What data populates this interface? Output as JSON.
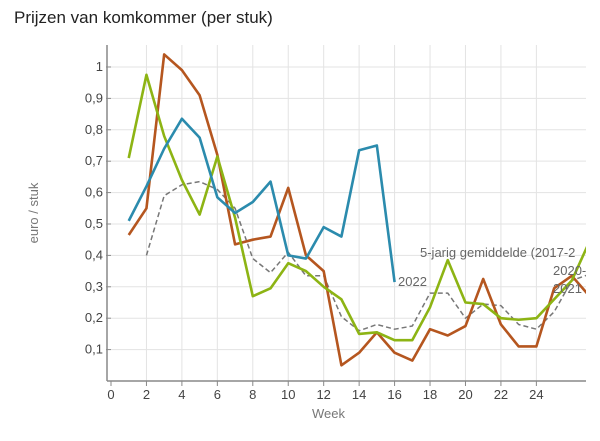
{
  "chart_data": {
    "type": "line",
    "title": "Prijzen van komkommer (per stuk)",
    "xlabel": "Week",
    "ylabel": "euro / stuk",
    "xlim": [
      0,
      26.8
    ],
    "ylim": [
      0,
      1.07
    ],
    "xticks": [
      "0",
      "2",
      "4",
      "6",
      "8",
      "10",
      "12",
      "14",
      "16",
      "18",
      "20",
      "22",
      "24"
    ],
    "yticks": [
      {
        "v": 0.1,
        "label": "0,1"
      },
      {
        "v": 0.2,
        "label": "0,2"
      },
      {
        "v": 0.3,
        "label": "0,3"
      },
      {
        "v": 0.4,
        "label": "0,4"
      },
      {
        "v": 0.5,
        "label": "0,5"
      },
      {
        "v": 0.6,
        "label": "0,6"
      },
      {
        "v": 0.7,
        "label": "0,7"
      },
      {
        "v": 0.8,
        "label": "0,8"
      },
      {
        "v": 0.9,
        "label": "0,9"
      },
      {
        "v": 1.0,
        "label": "1"
      }
    ],
    "grid": true,
    "series": [
      {
        "name": "5-jarig gemiddelde (2017-2",
        "color": "#777777",
        "dashed": true,
        "x": [
          2,
          3,
          4,
          5,
          6,
          7,
          8,
          9,
          10,
          11,
          12,
          13,
          14,
          15,
          16,
          17,
          18,
          19,
          20,
          21,
          22,
          23,
          24,
          25,
          26,
          27
        ],
        "values": [
          0.4,
          0.59,
          0.625,
          0.635,
          0.61,
          0.55,
          0.39,
          0.345,
          0.41,
          0.335,
          0.335,
          0.205,
          0.16,
          0.18,
          0.165,
          0.175,
          0.28,
          0.28,
          0.2,
          0.245,
          0.24,
          0.18,
          0.165,
          0.22,
          0.32,
          0.34
        ]
      },
      {
        "name": "2021",
        "color": "#b5561f",
        "dashed": false,
        "x": [
          1,
          2,
          3,
          4,
          5,
          6,
          7,
          8,
          9,
          10,
          11,
          12,
          13,
          14,
          15,
          16,
          17,
          18,
          19,
          20,
          21,
          22,
          23,
          24,
          25,
          26,
          27
        ],
        "values": [
          0.465,
          0.55,
          1.04,
          0.99,
          0.91,
          0.72,
          0.435,
          0.45,
          0.46,
          0.615,
          0.4,
          0.35,
          0.05,
          0.09,
          0.155,
          0.09,
          0.065,
          0.165,
          0.145,
          0.175,
          0.325,
          0.18,
          0.11,
          0.11,
          0.295,
          0.335,
          0.27
        ]
      },
      {
        "name": "2020-",
        "color": "#8db414",
        "dashed": false,
        "x": [
          1,
          2,
          3,
          4,
          5,
          6,
          7,
          8,
          9,
          10,
          11,
          12,
          13,
          14,
          15,
          16,
          17,
          18,
          19,
          20,
          21,
          22,
          23,
          24,
          25,
          26,
          27
        ],
        "values": [
          0.71,
          0.975,
          0.78,
          0.64,
          0.53,
          0.715,
          0.52,
          0.27,
          0.295,
          0.375,
          0.35,
          0.3,
          0.26,
          0.15,
          0.155,
          0.13,
          0.13,
          0.235,
          0.385,
          0.25,
          0.245,
          0.2,
          0.195,
          0.2,
          0.26,
          0.32,
          0.445
        ]
      },
      {
        "name": "2022",
        "color": "#2b8bad",
        "dashed": false,
        "x": [
          1,
          2,
          3,
          4,
          5,
          6,
          7,
          8,
          9,
          10,
          11,
          12,
          13,
          14,
          15,
          16
        ],
        "values": [
          0.51,
          0.62,
          0.74,
          0.835,
          0.775,
          0.585,
          0.535,
          0.57,
          0.635,
          0.4,
          0.39,
          0.49,
          0.46,
          0.735,
          0.75,
          0.315
        ]
      }
    ]
  }
}
